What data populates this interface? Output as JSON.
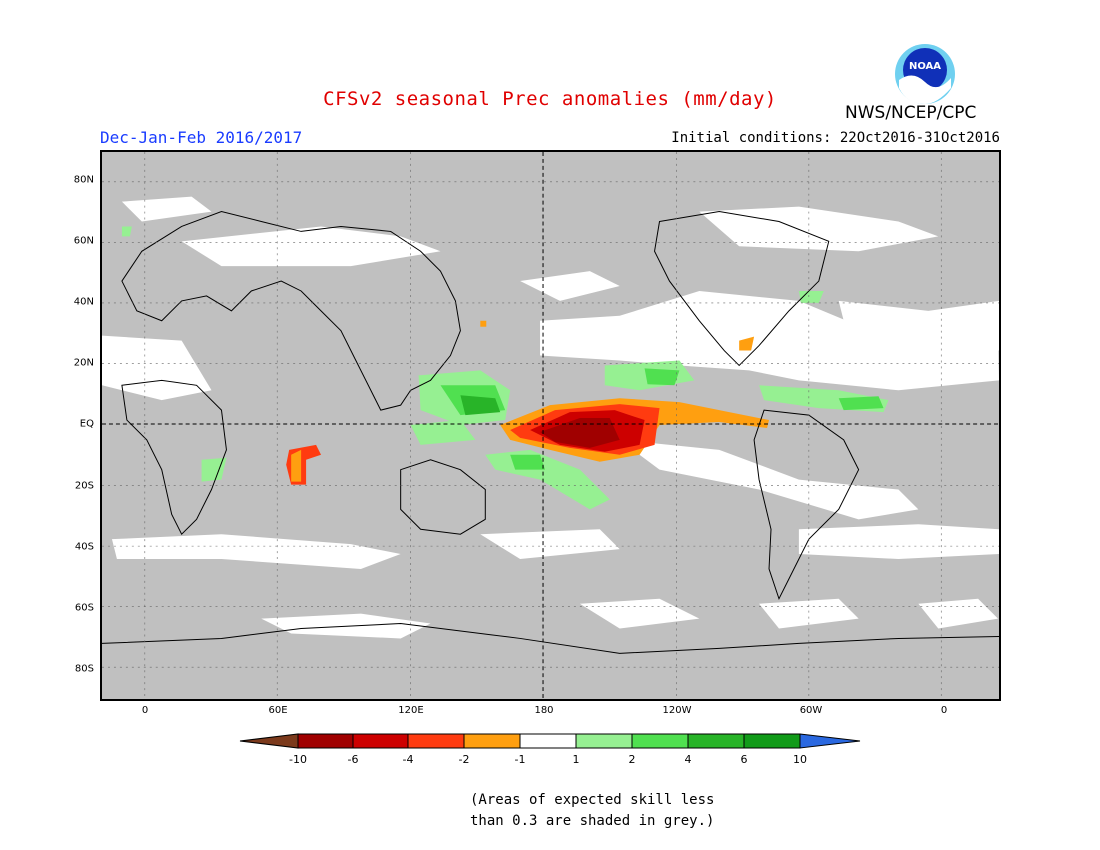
{
  "header": {
    "title": "CFSv2 seasonal Prec anomalies (mm/day)",
    "period": "Dec-Jan-Feb 2016/2017",
    "initial_conditions": "Initial conditions: 22Oct2016-31Oct2016",
    "agency": "NWS/NCEP/CPC",
    "logo_text": "NOAA"
  },
  "map": {
    "x_ticks": [
      "0",
      "60E",
      "120E",
      "180",
      "120W",
      "60W",
      "0"
    ],
    "y_ticks": [
      "80N",
      "60N",
      "40N",
      "20N",
      "EQ",
      "20S",
      "40S",
      "60S",
      "80S"
    ],
    "colors": {
      "ocean_grey": "#c0c0c0",
      "no_signal": "#ffffff",
      "dry_strong": "#a00000",
      "dry_mid": "#cd0000",
      "dry_weak": "#ff3b10",
      "dry_light": "#ff9f10",
      "wet_light": "#96f092",
      "wet_mid": "#50e050",
      "wet_strong": "#1ea01e"
    }
  },
  "colorbar": {
    "labels": [
      "-10",
      "-6",
      "-4",
      "-2",
      "-1",
      "1",
      "2",
      "4",
      "6",
      "10"
    ],
    "colors": [
      "#7c3a1c",
      "#a00000",
      "#cd0000",
      "#ff3b10",
      "#ff9f10",
      "#ffffff",
      "#96f092",
      "#50e050",
      "#28b428",
      "#119b19",
      "#2a68e0"
    ]
  },
  "note": {
    "line1": "(Areas of expected skill less",
    "line2": "than 0.3 are shaded in grey.)"
  }
}
